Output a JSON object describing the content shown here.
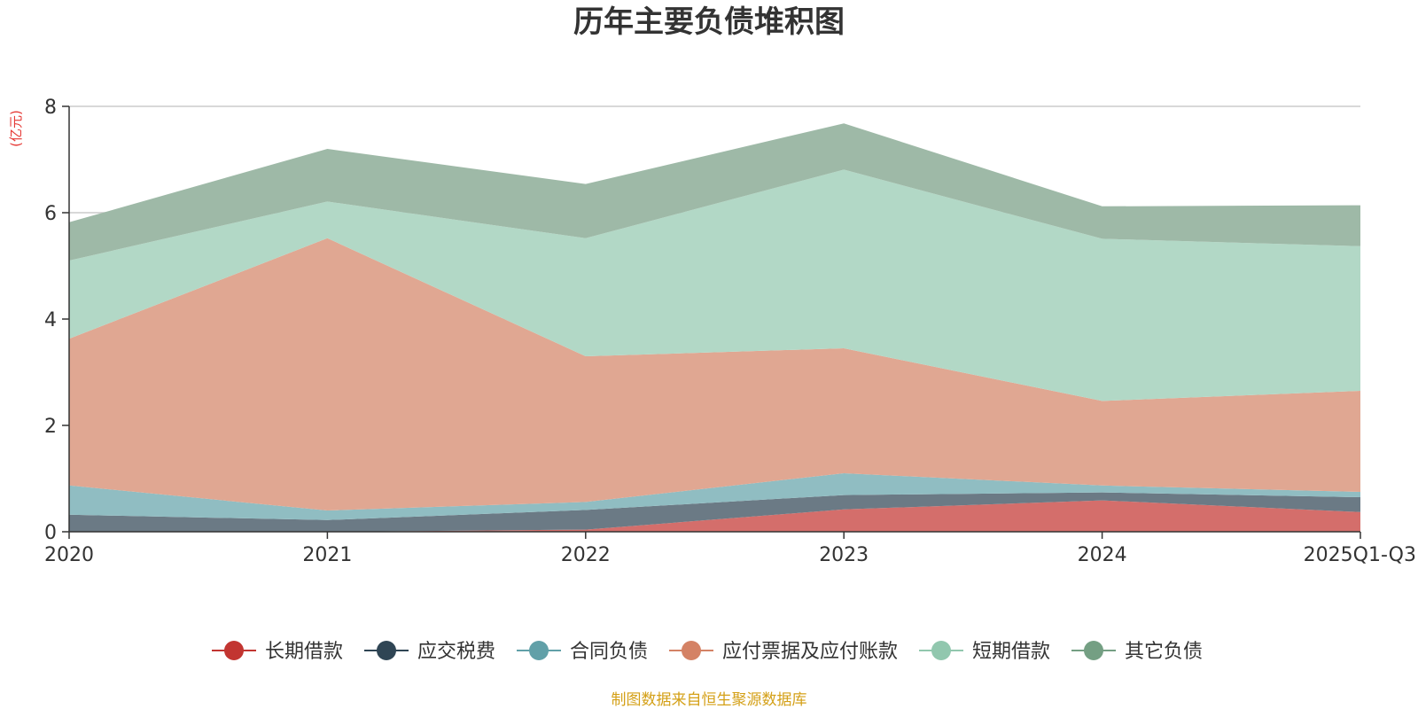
{
  "chart_data": {
    "type": "area",
    "stacked": true,
    "title": "历年主要负债堆积图",
    "unit_label": "(亿元)",
    "x": [
      "2020",
      "2021",
      "2022",
      "2023",
      "2024",
      "2025Q1-Q3"
    ],
    "ylim": [
      0,
      8
    ],
    "yticks": [
      0,
      2,
      4,
      6,
      8
    ],
    "grid": true,
    "series": [
      {
        "name": "长期借款",
        "color": "#c23531",
        "fill": "#d46e6b",
        "values": [
          0.0,
          0.0,
          0.04,
          0.42,
          0.59,
          0.37
        ]
      },
      {
        "name": "应交税费",
        "color": "#2f4554",
        "fill": "#6b7a85",
        "values": [
          0.32,
          0.22,
          0.37,
          0.27,
          0.15,
          0.28
        ]
      },
      {
        "name": "合同负债",
        "color": "#61a0a8",
        "fill": "#90bdc2",
        "values": [
          0.55,
          0.18,
          0.15,
          0.41,
          0.13,
          0.1
        ]
      },
      {
        "name": "应付票据及应付账款",
        "color": "#d48265",
        "fill": "#e0a792",
        "values": [
          2.76,
          5.12,
          2.74,
          2.35,
          1.59,
          1.9
        ]
      },
      {
        "name": "短期借款",
        "color": "#91c7ae",
        "fill": "#b2d8c6",
        "values": [
          1.47,
          0.69,
          2.22,
          3.36,
          3.05,
          2.72
        ]
      },
      {
        "name": "其它负债",
        "color": "#749f83",
        "fill": "#9eb9a7",
        "values": [
          0.72,
          0.99,
          1.02,
          0.87,
          0.61,
          0.77
        ]
      }
    ],
    "legend_position": "bottom",
    "source": "制图数据来自恒生聚源数据库"
  },
  "colors": {
    "unit_label": "#e53935",
    "source": "#d4a017",
    "axis": "#333333",
    "grid": "#cccccc"
  }
}
